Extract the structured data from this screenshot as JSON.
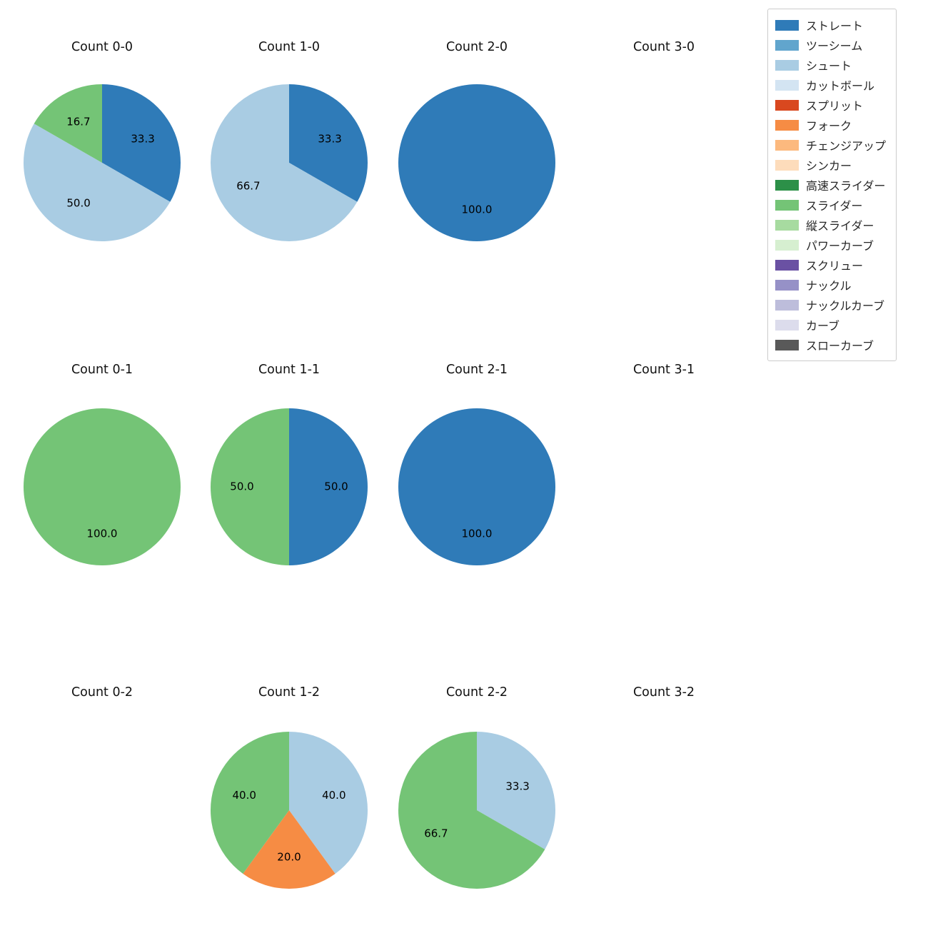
{
  "legend": {
    "items": [
      {
        "label": "ストレート",
        "color": "#2f7bb8"
      },
      {
        "label": "ツーシーム",
        "color": "#61a5cd"
      },
      {
        "label": "シュート",
        "color": "#a9cce3"
      },
      {
        "label": "カットボール",
        "color": "#d3e4f2"
      },
      {
        "label": "スプリット",
        "color": "#d9481f"
      },
      {
        "label": "フォーク",
        "color": "#f68c44"
      },
      {
        "label": "チェンジアップ",
        "color": "#fcb97e"
      },
      {
        "label": "シンカー",
        "color": "#fddcbb"
      },
      {
        "label": "高速スライダー",
        "color": "#2c9048"
      },
      {
        "label": "スライダー",
        "color": "#74c476"
      },
      {
        "label": "縦スライダー",
        "color": "#a7dba0"
      },
      {
        "label": "パワーカーブ",
        "color": "#d6efd0"
      },
      {
        "label": "スクリュー",
        "color": "#6a51a3"
      },
      {
        "label": "ナックル",
        "color": "#9691c7"
      },
      {
        "label": "ナックルカーブ",
        "color": "#bdbddb"
      },
      {
        "label": "カーブ",
        "color": "#dcdcec"
      },
      {
        "label": "スローカーブ",
        "color": "#595959"
      }
    ]
  },
  "chart_data": {
    "type": "pie",
    "start_angle_deg": 90,
    "direction": "clockwise",
    "label_format": "percent_one_decimal",
    "legend_position": "top-right",
    "charts": [
      {
        "title": "Count 0-0",
        "slices": [
          {
            "label": "ストレート",
            "value": 33.3
          },
          {
            "label": "シュート",
            "value": 50.0
          },
          {
            "label": "スライダー",
            "value": 16.7
          }
        ]
      },
      {
        "title": "Count 1-0",
        "slices": [
          {
            "label": "ストレート",
            "value": 33.3
          },
          {
            "label": "シュート",
            "value": 66.7
          }
        ]
      },
      {
        "title": "Count 2-0",
        "slices": [
          {
            "label": "ストレート",
            "value": 100.0
          }
        ]
      },
      {
        "title": "Count 3-0",
        "slices": []
      },
      {
        "title": "Count 0-1",
        "slices": [
          {
            "label": "スライダー",
            "value": 100.0
          }
        ]
      },
      {
        "title": "Count 1-1",
        "slices": [
          {
            "label": "ストレート",
            "value": 50.0
          },
          {
            "label": "スライダー",
            "value": 50.0
          }
        ]
      },
      {
        "title": "Count 2-1",
        "slices": [
          {
            "label": "ストレート",
            "value": 100.0
          }
        ]
      },
      {
        "title": "Count 3-1",
        "slices": []
      },
      {
        "title": "Count 0-2",
        "slices": []
      },
      {
        "title": "Count 1-2",
        "slices": [
          {
            "label": "シュート",
            "value": 40.0
          },
          {
            "label": "フォーク",
            "value": 20.0
          },
          {
            "label": "スライダー",
            "value": 40.0
          }
        ]
      },
      {
        "title": "Count 2-2",
        "slices": [
          {
            "label": "シュート",
            "value": 33.3
          },
          {
            "label": "スライダー",
            "value": 66.7
          }
        ]
      },
      {
        "title": "Count 3-2",
        "slices": []
      }
    ]
  }
}
